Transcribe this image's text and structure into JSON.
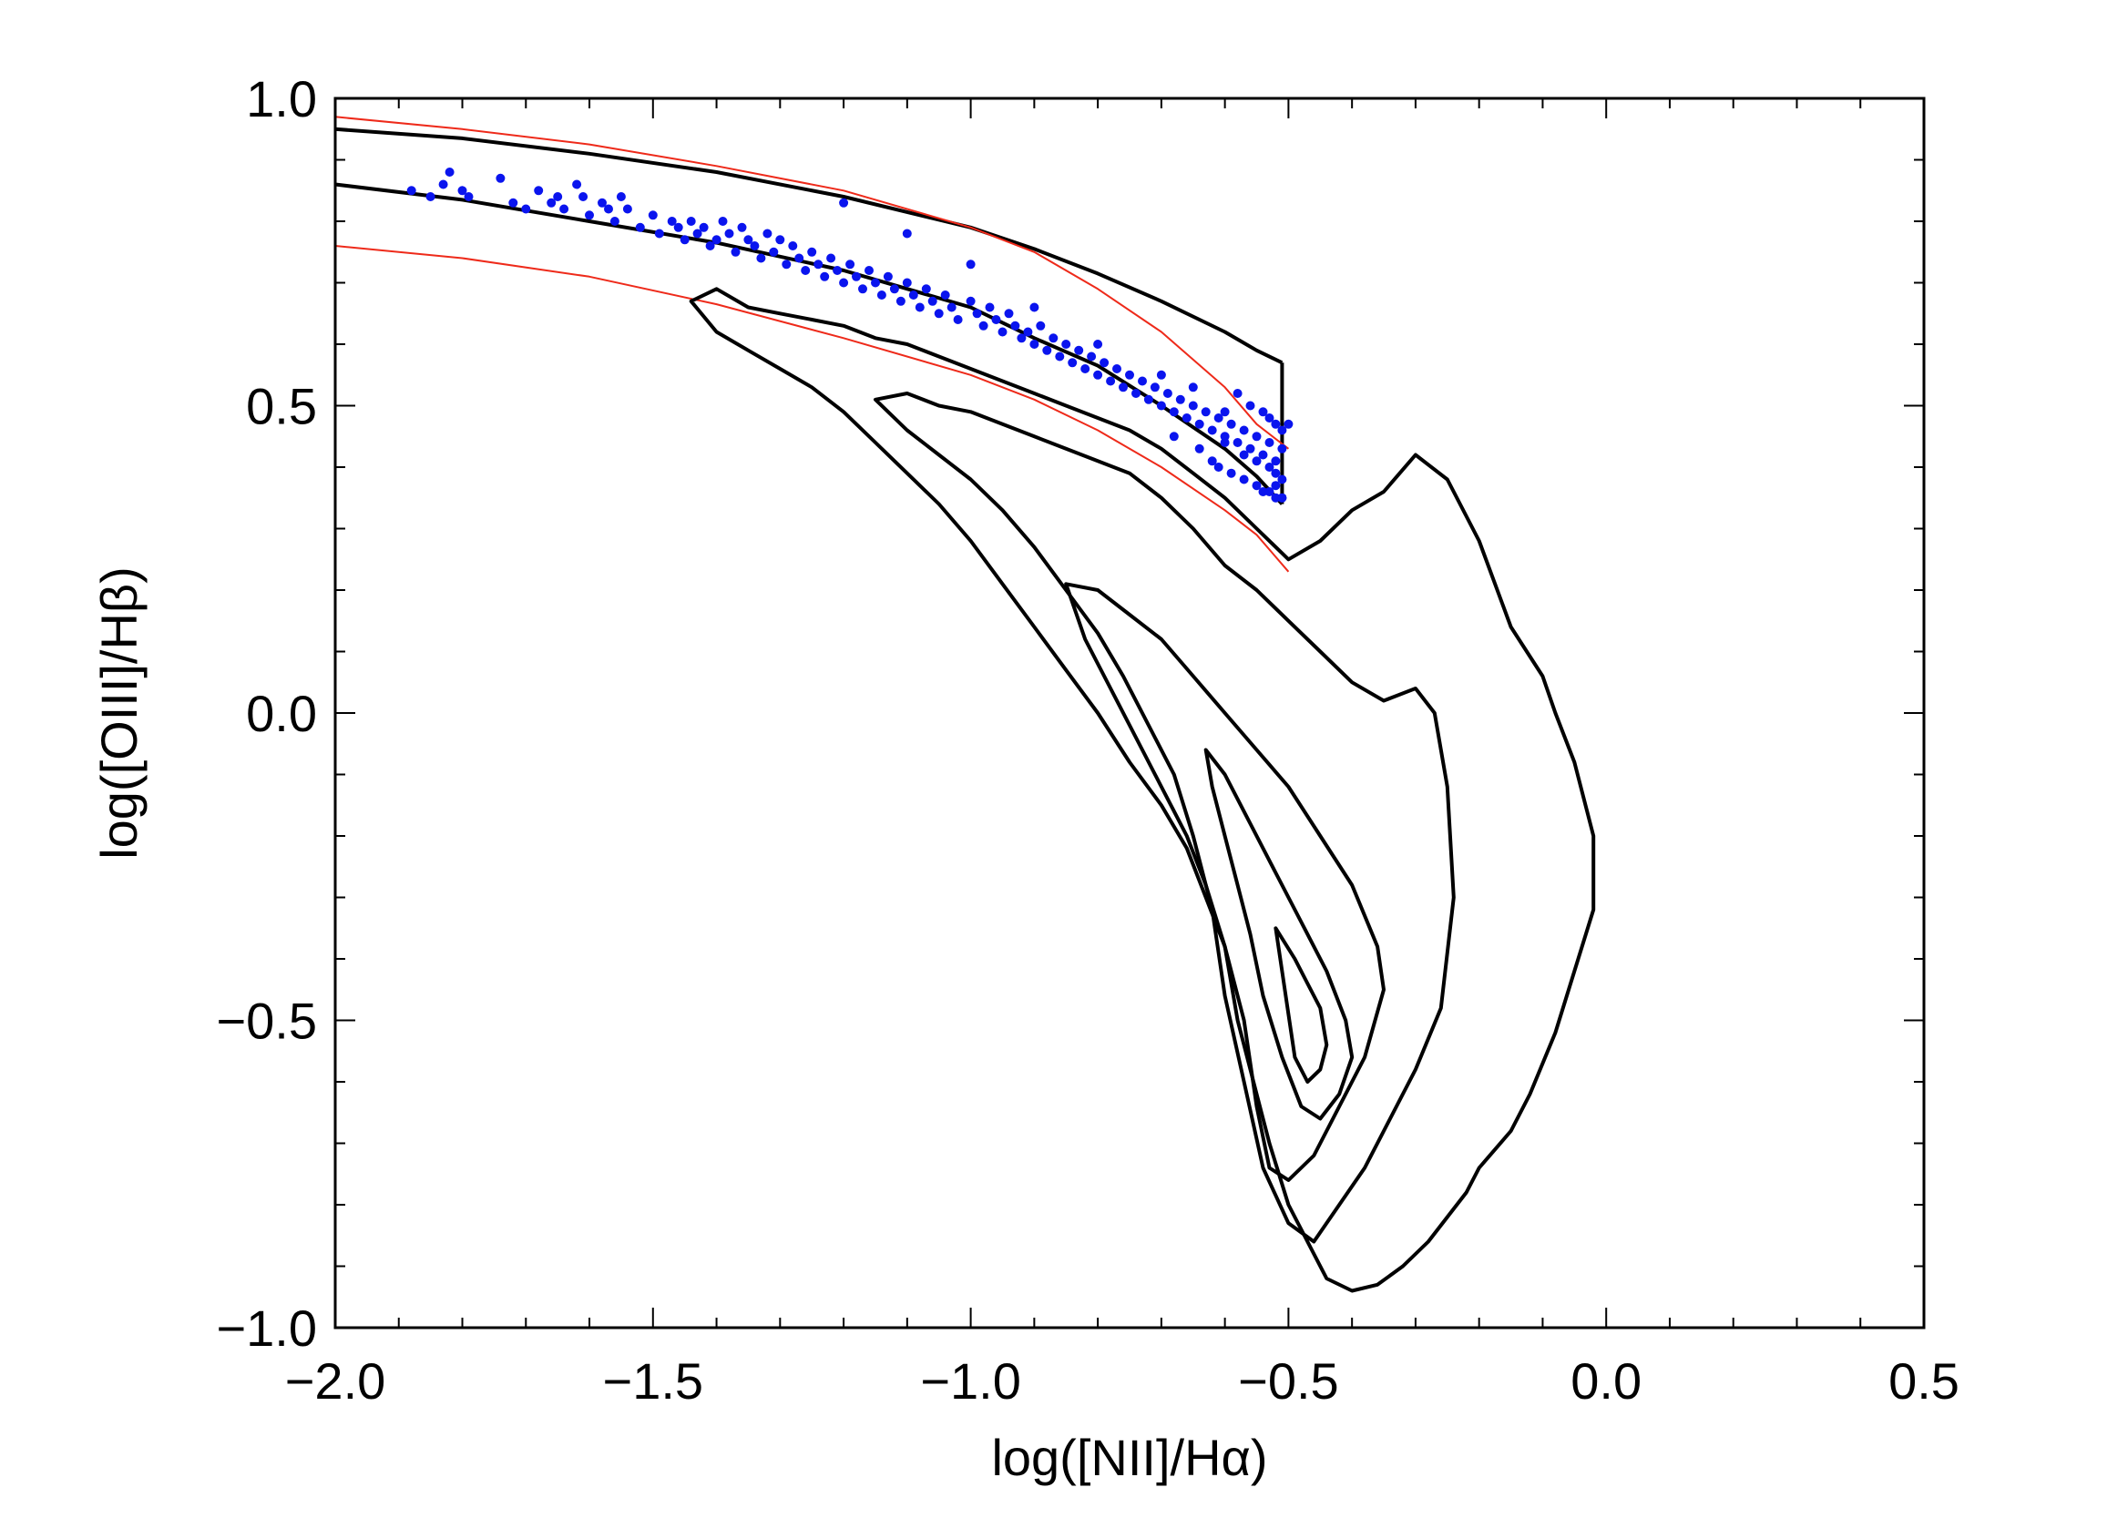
{
  "chart_data": {
    "type": "scatter",
    "title": "",
    "xlabel": "log([NII]/Hα)",
    "ylabel": "log([OIII]/Hβ)",
    "xlim": [
      -2.0,
      0.5
    ],
    "ylim": [
      -1.0,
      1.0
    ],
    "x_ticks": [
      "−2.0",
      "−1.5",
      "−1.0",
      "−0.5",
      "0.0",
      "0.5"
    ],
    "y_ticks": [
      "−1.0",
      "−0.5",
      "0.0",
      "0.5",
      "1.0"
    ],
    "grid": false,
    "legend": "none",
    "colors": {
      "points": "#0a14ee",
      "boundary_curves": "#000000",
      "reference_curves": "#ee2a1a",
      "contours": "#000000"
    },
    "series": [
      {
        "kind": "line",
        "color": "#000000",
        "x": [
          -2.0,
          -1.8,
          -1.6,
          -1.4,
          -1.2,
          -1.0,
          -0.9,
          -0.8,
          -0.7,
          -0.6,
          -0.55,
          -0.51
        ],
        "y": [
          0.95,
          0.935,
          0.91,
          0.88,
          0.84,
          0.79,
          0.755,
          0.715,
          0.67,
          0.62,
          0.59,
          0.57
        ]
      },
      {
        "kind": "line",
        "color": "#000000",
        "x": [
          -2.0,
          -1.8,
          -1.6,
          -1.4,
          -1.2,
          -1.0,
          -0.9,
          -0.8,
          -0.7,
          -0.6,
          -0.55,
          -0.51
        ],
        "y": [
          0.86,
          0.835,
          0.8,
          0.765,
          0.72,
          0.66,
          0.61,
          0.565,
          0.5,
          0.43,
          0.385,
          0.34
        ]
      },
      {
        "kind": "line",
        "color": "#000000",
        "x": [
          -0.51,
          -0.51
        ],
        "y": [
          0.34,
          0.57
        ]
      },
      {
        "kind": "line",
        "color": "#ee2a1a",
        "x": [
          -2.0,
          -1.8,
          -1.6,
          -1.4,
          -1.2,
          -1.0,
          -0.9,
          -0.8,
          -0.7,
          -0.6,
          -0.55,
          -0.5
        ],
        "y": [
          0.97,
          0.95,
          0.925,
          0.89,
          0.85,
          0.79,
          0.75,
          0.69,
          0.62,
          0.53,
          0.47,
          0.43
        ]
      },
      {
        "kind": "line",
        "color": "#ee2a1a",
        "x": [
          -2.0,
          -1.8,
          -1.6,
          -1.4,
          -1.2,
          -1.0,
          -0.9,
          -0.8,
          -0.7,
          -0.6,
          -0.55,
          -0.5
        ],
        "y": [
          0.76,
          0.74,
          0.71,
          0.665,
          0.61,
          0.55,
          0.51,
          0.46,
          0.4,
          0.33,
          0.29,
          0.23
        ]
      },
      {
        "kind": "contour",
        "color": "#000000",
        "x": [
          -1.44,
          -1.4,
          -1.35,
          -1.3,
          -1.25,
          -1.2,
          -1.15,
          -1.1,
          -1.05,
          -1.0,
          -0.95,
          -0.9,
          -0.85,
          -0.8,
          -0.75,
          -0.7,
          -0.65,
          -0.6,
          -0.55,
          -0.5,
          -0.45,
          -0.4,
          -0.35,
          -0.3,
          -0.25,
          -0.2,
          -0.15,
          -0.1,
          -0.08,
          -0.05,
          -0.02,
          -0.02,
          -0.05,
          -0.08,
          -0.12,
          -0.15,
          -0.2,
          -0.22,
          -0.25,
          -0.28,
          -0.32,
          -0.36,
          -0.4,
          -0.44,
          -0.46,
          -0.5,
          -0.53,
          -0.55,
          -0.58,
          -0.6,
          -0.63,
          -0.66,
          -0.7,
          -0.75,
          -0.8,
          -0.85,
          -0.9,
          -0.95,
          -1.0,
          -1.05,
          -1.1,
          -1.15,
          -1.2,
          -1.25,
          -1.3,
          -1.35,
          -1.4,
          -1.44
        ],
        "y": [
          0.67,
          0.69,
          0.66,
          0.65,
          0.64,
          0.63,
          0.61,
          0.6,
          0.58,
          0.56,
          0.54,
          0.52,
          0.5,
          0.48,
          0.46,
          0.43,
          0.39,
          0.35,
          0.3,
          0.25,
          0.28,
          0.33,
          0.36,
          0.42,
          0.38,
          0.28,
          0.14,
          0.06,
          0.0,
          -0.08,
          -0.2,
          -0.32,
          -0.42,
          -0.52,
          -0.62,
          -0.68,
          -0.74,
          -0.78,
          -0.82,
          -0.86,
          -0.9,
          -0.93,
          -0.94,
          -0.92,
          -0.88,
          -0.8,
          -0.7,
          -0.62,
          -0.5,
          -0.38,
          -0.3,
          -0.22,
          -0.15,
          -0.08,
          0.0,
          0.07,
          0.14,
          0.21,
          0.28,
          0.34,
          0.39,
          0.44,
          0.49,
          0.53,
          0.56,
          0.59,
          0.62,
          0.67
        ]
      },
      {
        "kind": "contour",
        "color": "#000000",
        "x": [
          -1.15,
          -1.1,
          -1.05,
          -1.0,
          -0.95,
          -0.9,
          -0.85,
          -0.8,
          -0.75,
          -0.7,
          -0.65,
          -0.6,
          -0.55,
          -0.5,
          -0.45,
          -0.4,
          -0.35,
          -0.3,
          -0.27,
          -0.25,
          -0.24,
          -0.26,
          -0.3,
          -0.34,
          -0.38,
          -0.42,
          -0.46,
          -0.5,
          -0.54,
          -0.57,
          -0.6,
          -0.62,
          -0.65,
          -0.68,
          -0.72,
          -0.76,
          -0.8,
          -0.85,
          -0.9,
          -0.95,
          -1.0,
          -1.05,
          -1.1,
          -1.15
        ],
        "y": [
          0.51,
          0.52,
          0.5,
          0.49,
          0.47,
          0.45,
          0.43,
          0.41,
          0.39,
          0.35,
          0.3,
          0.24,
          0.2,
          0.15,
          0.1,
          0.05,
          0.02,
          0.04,
          0.0,
          -0.12,
          -0.3,
          -0.48,
          -0.58,
          -0.66,
          -0.74,
          -0.8,
          -0.86,
          -0.83,
          -0.74,
          -0.6,
          -0.46,
          -0.32,
          -0.2,
          -0.1,
          -0.02,
          0.06,
          0.13,
          0.2,
          0.27,
          0.33,
          0.38,
          0.42,
          0.46,
          0.51
        ]
      },
      {
        "kind": "contour",
        "color": "#000000",
        "x": [
          -0.85,
          -0.8,
          -0.75,
          -0.7,
          -0.65,
          -0.6,
          -0.55,
          -0.5,
          -0.45,
          -0.4,
          -0.36,
          -0.35,
          -0.38,
          -0.42,
          -0.46,
          -0.5,
          -0.53,
          -0.55,
          -0.57,
          -0.6,
          -0.63,
          -0.66,
          -0.7,
          -0.74,
          -0.78,
          -0.82,
          -0.85
        ],
        "y": [
          0.21,
          0.2,
          0.16,
          0.12,
          0.06,
          0.0,
          -0.06,
          -0.12,
          -0.2,
          -0.28,
          -0.38,
          -0.45,
          -0.56,
          -0.64,
          -0.72,
          -0.76,
          -0.74,
          -0.64,
          -0.5,
          -0.38,
          -0.28,
          -0.2,
          -0.12,
          -0.04,
          0.04,
          0.12,
          0.21
        ]
      },
      {
        "kind": "contour",
        "color": "#000000",
        "x": [
          -0.63,
          -0.6,
          -0.56,
          -0.52,
          -0.48,
          -0.44,
          -0.41,
          -0.4,
          -0.42,
          -0.45,
          -0.48,
          -0.51,
          -0.54,
          -0.56,
          -0.58,
          -0.6,
          -0.62,
          -0.63
        ],
        "y": [
          -0.06,
          -0.1,
          -0.18,
          -0.26,
          -0.34,
          -0.42,
          -0.5,
          -0.56,
          -0.62,
          -0.66,
          -0.64,
          -0.56,
          -0.46,
          -0.36,
          -0.28,
          -0.2,
          -0.12,
          -0.06
        ]
      },
      {
        "kind": "contour",
        "color": "#000000",
        "x": [
          -0.52,
          -0.49,
          -0.47,
          -0.45,
          -0.44,
          -0.45,
          -0.47,
          -0.49,
          -0.5,
          -0.51,
          -0.52
        ],
        "y": [
          -0.35,
          -0.4,
          -0.44,
          -0.48,
          -0.54,
          -0.58,
          -0.6,
          -0.56,
          -0.49,
          -0.42,
          -0.35
        ]
      }
    ],
    "points": {
      "color": "#0a14ee",
      "x": [
        -1.88,
        -1.85,
        -1.83,
        -1.82,
        -1.8,
        -1.79,
        -1.74,
        -1.72,
        -1.7,
        -1.68,
        -1.66,
        -1.65,
        -1.64,
        -1.62,
        -1.61,
        -1.6,
        -1.58,
        -1.57,
        -1.56,
        -1.55,
        -1.54,
        -1.52,
        -1.5,
        -1.49,
        -1.47,
        -1.46,
        -1.45,
        -1.44,
        -1.43,
        -1.42,
        -1.41,
        -1.4,
        -1.39,
        -1.38,
        -1.37,
        -1.36,
        -1.35,
        -1.34,
        -1.33,
        -1.32,
        -1.31,
        -1.3,
        -1.29,
        -1.28,
        -1.27,
        -1.26,
        -1.25,
        -1.24,
        -1.23,
        -1.22,
        -1.21,
        -1.2,
        -1.19,
        -1.18,
        -1.17,
        -1.16,
        -1.15,
        -1.14,
        -1.13,
        -1.12,
        -1.11,
        -1.1,
        -1.09,
        -1.08,
        -1.07,
        -1.06,
        -1.05,
        -1.04,
        -1.03,
        -1.02,
        -1.0,
        -0.99,
        -0.98,
        -0.97,
        -0.96,
        -0.95,
        -0.94,
        -0.93,
        -0.92,
        -0.91,
        -0.9,
        -0.89,
        -0.88,
        -0.87,
        -0.86,
        -0.85,
        -0.84,
        -0.83,
        -0.82,
        -0.81,
        -0.8,
        -0.79,
        -0.78,
        -0.77,
        -0.76,
        -0.75,
        -0.74,
        -0.73,
        -0.72,
        -0.71,
        -0.7,
        -0.69,
        -0.68,
        -0.67,
        -0.66,
        -0.65,
        -0.64,
        -0.63,
        -0.62,
        -0.61,
        -0.6,
        -0.59,
        -0.58,
        -0.57,
        -0.56,
        -0.55,
        -0.54,
        -0.53,
        -0.52,
        -0.51,
        -0.58,
        -0.56,
        -0.54,
        -0.53,
        -0.52,
        -0.51,
        -0.5,
        -0.6,
        -0.57,
        -0.55,
        -0.53,
        -0.52,
        -0.51,
        -0.62,
        -0.59,
        -0.55,
        -0.53,
        -0.52,
        -0.51,
        -0.68,
        -0.64,
        -0.61,
        -0.57,
        -0.54,
        -0.52,
        -0.51,
        -1.2,
        -1.1,
        -1.0,
        -0.9,
        -0.8,
        -0.7,
        -0.65,
        -0.6
      ],
      "y": [
        0.85,
        0.84,
        0.86,
        0.88,
        0.85,
        0.84,
        0.87,
        0.83,
        0.82,
        0.85,
        0.83,
        0.84,
        0.82,
        0.86,
        0.84,
        0.81,
        0.83,
        0.82,
        0.8,
        0.84,
        0.82,
        0.79,
        0.81,
        0.78,
        0.8,
        0.79,
        0.77,
        0.8,
        0.78,
        0.79,
        0.76,
        0.77,
        0.8,
        0.78,
        0.75,
        0.79,
        0.77,
        0.76,
        0.74,
        0.78,
        0.75,
        0.77,
        0.73,
        0.76,
        0.74,
        0.72,
        0.75,
        0.73,
        0.71,
        0.74,
        0.72,
        0.7,
        0.73,
        0.71,
        0.69,
        0.72,
        0.7,
        0.68,
        0.71,
        0.69,
        0.67,
        0.7,
        0.68,
        0.66,
        0.69,
        0.67,
        0.65,
        0.68,
        0.66,
        0.64,
        0.67,
        0.65,
        0.63,
        0.66,
        0.64,
        0.62,
        0.65,
        0.63,
        0.61,
        0.62,
        0.6,
        0.63,
        0.59,
        0.61,
        0.58,
        0.6,
        0.57,
        0.59,
        0.56,
        0.58,
        0.55,
        0.57,
        0.54,
        0.56,
        0.53,
        0.55,
        0.52,
        0.54,
        0.51,
        0.53,
        0.5,
        0.52,
        0.49,
        0.51,
        0.48,
        0.5,
        0.47,
        0.49,
        0.46,
        0.48,
        0.45,
        0.47,
        0.44,
        0.46,
        0.43,
        0.45,
        0.42,
        0.44,
        0.41,
        0.43,
        0.52,
        0.5,
        0.49,
        0.48,
        0.47,
        0.46,
        0.47,
        0.44,
        0.42,
        0.41,
        0.4,
        0.39,
        0.38,
        0.41,
        0.39,
        0.37,
        0.36,
        0.35,
        0.35,
        0.45,
        0.43,
        0.4,
        0.38,
        0.36,
        0.37,
        0.35,
        0.83,
        0.78,
        0.73,
        0.66,
        0.6,
        0.55,
        0.53,
        0.49
      ]
    }
  }
}
